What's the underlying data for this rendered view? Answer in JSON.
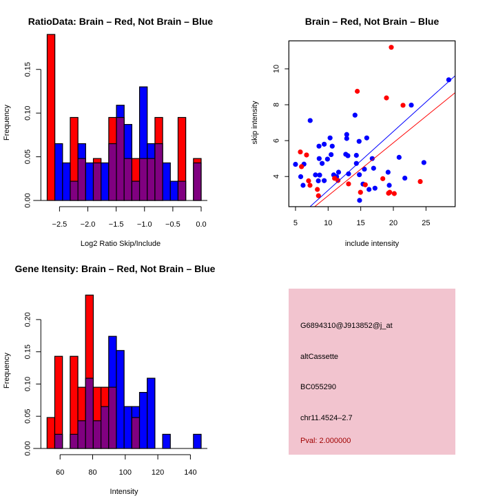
{
  "chart_data": [
    {
      "type": "bar",
      "id": "ratio",
      "title": "RatioData: Brain – Red, Not Brain – Blue",
      "xlabel": "Log2 Ratio Skip/Include",
      "ylabel": "Frequency",
      "xlim": [
        -2.72,
        0.0
      ],
      "ylim": [
        0,
        0.19
      ],
      "x_ticks": [
        -2.5,
        -2.0,
        -1.5,
        -1.0,
        -0.5,
        0.0
      ],
      "x_tick_labels": [
        "−2.5",
        "−2.0",
        "−1.5",
        "−1.0",
        "−0.5",
        "0.0"
      ],
      "y_ticks": [
        0,
        0.05,
        0.1,
        0.15
      ],
      "y_tick_labels": [
        "0.00",
        "0.05",
        "0.10",
        "0.15"
      ],
      "bin_start": -2.718,
      "bin_width": 0.1359,
      "series": [
        {
          "name": "Brain",
          "color": "#ff0000",
          "values": [
            0.19,
            0,
            0,
            0.095,
            0.048,
            0,
            0.048,
            0,
            0.095,
            0.095,
            0.048,
            0.048,
            0.048,
            0.048,
            0.095,
            0,
            0,
            0.095,
            0,
            0.048
          ]
        },
        {
          "name": "Not Brain",
          "color": "#0000ff",
          "values": [
            0,
            0.065,
            0.043,
            0.022,
            0.065,
            0.043,
            0.043,
            0.043,
            0.065,
            0.109,
            0.087,
            0.022,
            0.13,
            0.065,
            0.065,
            0.043,
            0.022,
            0.022,
            0,
            0.043
          ]
        }
      ],
      "overlap_color": "#800080"
    },
    {
      "type": "scatter",
      "id": "scatter",
      "title": "Brain – Red, Not Brain – Blue",
      "xlabel": "include intensity",
      "ylabel": "skip intensity",
      "xlim": [
        3.98,
        29.47
      ],
      "ylim": [
        2.32,
        11.56
      ],
      "x_ticks": [
        5,
        10,
        15,
        20,
        25
      ],
      "x_tick_labels": [
        "5",
        "10",
        "15",
        "20",
        "25"
      ],
      "y_ticks": [
        4,
        6,
        8,
        10
      ],
      "y_tick_labels": [
        "4",
        "6",
        "8",
        "10"
      ],
      "series": [
        {
          "name": "Not Brain",
          "color": "#0000ff",
          "fit_slope": 0.328,
          "fit_intercept": -0.05,
          "points": [
            [
              5.0,
              4.68
            ],
            [
              5.8,
              3.99
            ],
            [
              6.16,
              3.51
            ],
            [
              6.3,
              4.69
            ],
            [
              7.25,
              7.12
            ],
            [
              8.06,
              4.09
            ],
            [
              8.5,
              3.76
            ],
            [
              8.7,
              4.08
            ],
            [
              8.6,
              5.69
            ],
            [
              8.63,
              5.0
            ],
            [
              9.08,
              4.73
            ],
            [
              9.4,
              5.8
            ],
            [
              9.4,
              3.77
            ],
            [
              9.9,
              4.97
            ],
            [
              10.3,
              6.15
            ],
            [
              10.46,
              5.22
            ],
            [
              10.63,
              5.69
            ],
            [
              10.85,
              4.09
            ],
            [
              11.3,
              3.99
            ],
            [
              11.6,
              4.24
            ],
            [
              12.7,
              5.24
            ],
            [
              12.85,
              6.12
            ],
            [
              12.85,
              6.34
            ],
            [
              13.03,
              5.16
            ],
            [
              13.13,
              4.15
            ],
            [
              14.12,
              7.42
            ],
            [
              14.33,
              5.18
            ],
            [
              14.33,
              4.73
            ],
            [
              14.75,
              5.96
            ],
            [
              14.79,
              4.1
            ],
            [
              14.82,
              2.67
            ],
            [
              15.35,
              3.58
            ],
            [
              15.56,
              4.41
            ],
            [
              15.92,
              6.15
            ],
            [
              16.27,
              3.28
            ],
            [
              16.76,
              5.0
            ],
            [
              16.97,
              4.46
            ],
            [
              17.18,
              3.35
            ],
            [
              19.19,
              4.24
            ],
            [
              19.37,
              3.51
            ],
            [
              20.88,
              5.07
            ],
            [
              21.76,
              3.91
            ],
            [
              22.75,
              7.98
            ],
            [
              24.68,
              4.78
            ],
            [
              28.49,
              9.39
            ]
          ]
        },
        {
          "name": "Brain",
          "color": "#ff0000",
          "fit_slope": 0.295,
          "fit_intercept": -0.02,
          "points": [
            [
              5.74,
              5.37
            ],
            [
              5.92,
              4.55
            ],
            [
              6.69,
              5.2
            ],
            [
              7.0,
              3.76
            ],
            [
              7.22,
              3.51
            ],
            [
              8.35,
              3.28
            ],
            [
              8.52,
              2.93
            ],
            [
              10.99,
              3.9
            ],
            [
              11.51,
              3.78
            ],
            [
              13.13,
              3.59
            ],
            [
              14.47,
              8.75
            ],
            [
              14.96,
              3.12
            ],
            [
              15.7,
              3.54
            ],
            [
              18.38,
              3.88
            ],
            [
              18.94,
              8.38
            ],
            [
              19.26,
              3.07
            ],
            [
              19.44,
              3.12
            ],
            [
              19.68,
              11.2
            ],
            [
              20.14,
              3.05
            ],
            [
              21.48,
              7.97
            ],
            [
              24.12,
              3.72
            ]
          ]
        }
      ]
    },
    {
      "type": "bar",
      "id": "intensity",
      "title": "Gene Itensity: Brain – Red, Not Brain – Blue",
      "xlabel": "Intensity",
      "ylabel": "Frequency",
      "xlim": [
        52,
        146.6
      ],
      "ylim": [
        0,
        0.238
      ],
      "x_ticks": [
        60,
        80,
        100,
        120,
        140
      ],
      "x_tick_labels": [
        "60",
        "80",
        "100",
        "120",
        "140"
      ],
      "y_ticks": [
        0,
        0.05,
        0.1,
        0.15,
        0.2
      ],
      "y_tick_labels": [
        "0.00",
        "0.05",
        "0.10",
        "0.15",
        "0.20"
      ],
      "bin_start": 52.0,
      "bin_width": 4.73,
      "series": [
        {
          "name": "Brain",
          "color": "#ff0000",
          "values": [
            0.048,
            0.143,
            0,
            0.143,
            0.095,
            0.238,
            0.095,
            0.095,
            0.095,
            0,
            0,
            0.048,
            0,
            0,
            0,
            0,
            0,
            0,
            0,
            0
          ]
        },
        {
          "name": "Not Brain",
          "color": "#0000ff",
          "values": [
            0,
            0.022,
            0,
            0.022,
            0.043,
            0.109,
            0.043,
            0.065,
            0.174,
            0.152,
            0.065,
            0.065,
            0.087,
            0.109,
            0,
            0.022,
            0,
            0,
            0,
            0.022
          ]
        }
      ],
      "overlap_color": "#800080"
    }
  ],
  "info_panel": {
    "background": "#f2c4cf",
    "probe_id": "G6894310@J913852@j_at",
    "event_type": "altCassette",
    "accession": "BC055290",
    "location": "chr11.4524–2.7",
    "pval": "Pval: 2.000000",
    "pval_color": "#a00000"
  }
}
